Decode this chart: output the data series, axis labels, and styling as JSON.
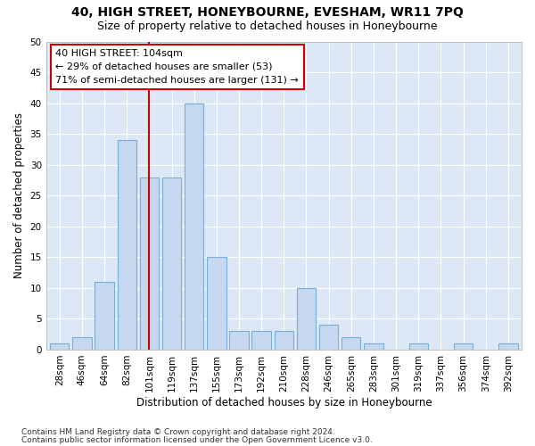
{
  "title": "40, HIGH STREET, HONEYBOURNE, EVESHAM, WR11 7PQ",
  "subtitle": "Size of property relative to detached houses in Honeybourne",
  "xlabel": "Distribution of detached houses by size in Honeybourne",
  "ylabel": "Number of detached properties",
  "footnote1": "Contains HM Land Registry data © Crown copyright and database right 2024.",
  "footnote2": "Contains public sector information licensed under the Open Government Licence v3.0.",
  "annotation_line1": "40 HIGH STREET: 104sqm",
  "annotation_line2": "← 29% of detached houses are smaller (53)",
  "annotation_line3": "71% of semi-detached houses are larger (131) →",
  "bar_labels": [
    "28sqm",
    "46sqm",
    "64sqm",
    "82sqm",
    "101sqm",
    "119sqm",
    "137sqm",
    "155sqm",
    "173sqm",
    "192sqm",
    "210sqm",
    "228sqm",
    "246sqm",
    "265sqm",
    "283sqm",
    "301sqm",
    "319sqm",
    "337sqm",
    "356sqm",
    "374sqm",
    "392sqm"
  ],
  "bar_values": [
    1,
    2,
    11,
    34,
    28,
    28,
    40,
    15,
    3,
    3,
    3,
    10,
    4,
    2,
    1,
    0,
    1,
    0,
    1,
    0,
    1
  ],
  "bar_color": "#c5d8f0",
  "bar_edge_color": "#7aadd4",
  "background_color": "#ffffff",
  "plot_bg_color": "#dce8f5",
  "grid_color": "#ffffff",
  "vline_color": "#cc0000",
  "vline_index": 4,
  "ylim": [
    0,
    50
  ],
  "yticks": [
    0,
    5,
    10,
    15,
    20,
    25,
    30,
    35,
    40,
    45,
    50
  ],
  "annotation_box_facecolor": "#ffffff",
  "annotation_box_edge": "#cc0000",
  "title_fontsize": 10,
  "subtitle_fontsize": 9,
  "axis_label_fontsize": 8.5,
  "tick_fontsize": 7.5,
  "annotation_fontsize": 8,
  "footnote_fontsize": 6.5
}
